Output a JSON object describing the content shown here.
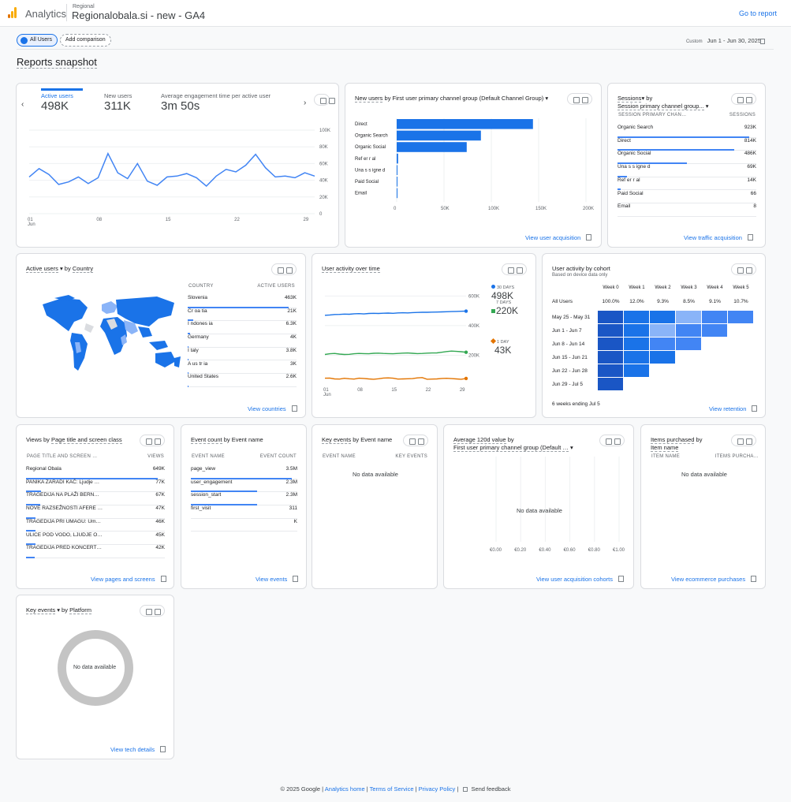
{
  "header": {
    "brand": "Analytics",
    "account": "Regional",
    "property": "Regionalobala.si - new - GA4",
    "go_to_report": "Go to report",
    "logo_colors": [
      "#f9ab00",
      "#e37400"
    ]
  },
  "toolbar": {
    "all_users": "All Users",
    "add_comparison": "Add comparison",
    "date_label": "Custom",
    "date_range": "Jun 1 - Jun 30, 2025"
  },
  "page_title": "Reports snapshot",
  "card_overview": {
    "metrics": [
      {
        "label": "Active users",
        "value": "498K"
      },
      {
        "label": "New users",
        "value": "311K"
      },
      {
        "label": "Average engagement time per active user",
        "value": "3m 50s"
      }
    ],
    "y_ticks": [
      "100K",
      "80K",
      "60K",
      "40K",
      "20K",
      "0"
    ],
    "x_ticks": [
      "01",
      "08",
      "15",
      "22",
      "29"
    ],
    "x_sub": "Jun"
  },
  "chart_data": [
    {
      "type": "line",
      "title": "Active users",
      "x": [
        "Jun 1",
        "Jun 2",
        "Jun 3",
        "Jun 4",
        "Jun 5",
        "Jun 6",
        "Jun 7",
        "Jun 8",
        "Jun 9",
        "Jun 10",
        "Jun 11",
        "Jun 12",
        "Jun 13",
        "Jun 14",
        "Jun 15",
        "Jun 16",
        "Jun 17",
        "Jun 18",
        "Jun 19",
        "Jun 20",
        "Jun 21",
        "Jun 22",
        "Jun 23",
        "Jun 24",
        "Jun 25",
        "Jun 26",
        "Jun 27",
        "Jun 28",
        "Jun 29",
        "Jun 30"
      ],
      "values": [
        44000,
        54000,
        47000,
        35000,
        38000,
        44000,
        36000,
        43000,
        72000,
        49000,
        42000,
        60000,
        39000,
        34000,
        44000,
        45000,
        48000,
        43000,
        33000,
        45000,
        53000,
        50000,
        58000,
        71000,
        55000,
        44000,
        45000,
        43000,
        49000,
        45000
      ],
      "ylim": [
        0,
        100000
      ],
      "x_ticks": [
        "01",
        "08",
        "15",
        "22",
        "29"
      ],
      "y_ticks": [
        "100K",
        "80K",
        "60K",
        "40K",
        "20K",
        "0"
      ]
    },
    {
      "type": "bar",
      "title": "New users by First user primary channel group (Default Channel Group)",
      "categories": [
        "Direct",
        "Organic Search",
        "Organic Social",
        "Ref er r al",
        "Una s s igne d",
        "Paid Social",
        "Email"
      ],
      "values": [
        144000,
        89000,
        74000,
        1500,
        800,
        200,
        50
      ],
      "ylim": [
        0,
        200000
      ],
      "ticks": [
        "0",
        "50K",
        "100K",
        "150K",
        "200K"
      ]
    },
    {
      "type": "line",
      "title": "User activity over time",
      "x_ticks": [
        "01",
        "08",
        "15",
        "22",
        "29"
      ],
      "x_sub": "Jun",
      "y_ticks": [
        "600K",
        "400K",
        "200K"
      ],
      "series": [
        {
          "name": "30 DAYS",
          "value": "498K",
          "color": "#1a73e8",
          "values": [
            470000,
            472000,
            475000,
            476000,
            478000,
            477000,
            480000,
            481000,
            479000,
            482000,
            483000,
            482000,
            484000,
            485000,
            483000,
            486000,
            487000,
            486000,
            488000,
            489000,
            490000,
            490000,
            491000,
            492000,
            493000,
            494000,
            495000,
            496000,
            497000,
            498000
          ]
        },
        {
          "name": "7 DAYS",
          "value": "220K",
          "color": "#34a853",
          "values": [
            205000,
            210000,
            212000,
            208000,
            205000,
            206000,
            210000,
            212000,
            211000,
            210000,
            213000,
            214000,
            212000,
            211000,
            210000,
            212000,
            214000,
            215000,
            213000,
            211000,
            212000,
            214000,
            215000,
            216000,
            220000,
            225000,
            228000,
            226000,
            224000,
            220000
          ]
        },
        {
          "name": "1 DAY",
          "value": "43K",
          "color": "#e37400",
          "values": [
            45000,
            46000,
            40000,
            39000,
            44000,
            41000,
            39000,
            45000,
            43000,
            40000,
            38000,
            41000,
            46000,
            47000,
            45000,
            39000,
            40000,
            41000,
            42000,
            47000,
            49000,
            38000,
            39000,
            40000,
            43000,
            44000,
            42000,
            40000,
            38000,
            43000
          ]
        }
      ],
      "ylim": [
        0,
        650000
      ]
    },
    {
      "type": "line",
      "title": "Average 120d value by First user primary channel group (Default Channel Group)",
      "x_ticks": [
        "€0.00",
        "€0.20",
        "€0.40",
        "€0.60",
        "€0.80",
        "€1.00"
      ],
      "values": []
    }
  ],
  "card_acq": {
    "title_a": "New users",
    "title_b": "by First user primary channel group (Default Channel Group)",
    "link": "View user acquisition"
  },
  "card_traffic": {
    "title_a": "Sessions",
    "title_b": "by",
    "title_c": "Session primary channel group...",
    "col1": "SESSION PRIMARY CHAN…",
    "col2": "SESSIONS",
    "rows": [
      {
        "k": "Organic Search",
        "v": "923K",
        "f": 0.95
      },
      {
        "k": "Direct",
        "v": "814K",
        "f": 0.84
      },
      {
        "k": "Organic Social",
        "v": "486K",
        "f": 0.5
      },
      {
        "k": "Una s s igne d",
        "v": "69K",
        "f": 0.07
      },
      {
        "k": "Ref er r al",
        "v": "14K",
        "f": 0.02
      },
      {
        "k": "Paid Social",
        "v": "66",
        "f": 0
      },
      {
        "k": "Email",
        "v": "8",
        "f": 0
      }
    ],
    "link": "View traffic acquisition"
  },
  "card_country": {
    "title_a": "Active users",
    "title_b": "by",
    "title_c": "Country",
    "col1": "COUNTRY",
    "col2": "ACTIVE USERS",
    "rows": [
      {
        "k": "Slovenia",
        "v": "463K",
        "f": 0.93
      },
      {
        "k": "Cr oa tia",
        "v": "21K",
        "f": 0.05
      },
      {
        "k": "I ndones ia",
        "v": "6.3K",
        "f": 0.02
      },
      {
        "k": "Germany",
        "v": "4K",
        "f": 0.01
      },
      {
        "k": "I taly",
        "v": "3.8K",
        "f": 0.01
      },
      {
        "k": "A us tr ia",
        "v": "3K",
        "f": 0.01
      },
      {
        "k": "United States",
        "v": "2.6K",
        "f": 0.01
      }
    ],
    "link": "View countries"
  },
  "card_activity": {
    "title": "User activity over time",
    "labels": [
      {
        "name": "30 DAYS",
        "value": "498K"
      },
      {
        "name": "7 DAYS",
        "value": "220K"
      },
      {
        "name": "1 DAY",
        "value": "43K"
      }
    ]
  },
  "card_cohort": {
    "title": "User activity by cohort",
    "subtitle": "Based on device data only",
    "weeks": [
      "Week 0",
      "Week 1",
      "Week 2",
      "Week 3",
      "Week 4",
      "Week 5"
    ],
    "all_users": "All Users",
    "all_values": [
      "100.0%",
      "12.0%",
      "9.3%",
      "8.5%",
      "9.1%",
      "10.7%"
    ],
    "rows": [
      "May 25 - May 31",
      "Jun 1 - Jun 7",
      "Jun 8 - Jun 14",
      "Jun 15 - Jun 21",
      "Jun 22 - Jun 28",
      "Jun 29 - Jul 5"
    ],
    "footnote": "6 weeks ending Jul 5",
    "link": "View retention"
  },
  "card_pages": {
    "title_a": "Views by",
    "title_b": "Page title and screen class",
    "col1": "PAGE TITLE AND SCREEN …",
    "col2": "VIEWS",
    "rows": [
      {
        "k": "Regional Obala",
        "v": "649K",
        "f": 0.95
      },
      {
        "k": "PANIKA ZARADI KAČ: Ljudje …",
        "v": "77K",
        "f": 0.11
      },
      {
        "k": "TRAGEDIJA NA PLAŽI BERN…",
        "v": "67K",
        "f": 0.1
      },
      {
        "k": "NOVE RAZSEŽNOSTI AFERE …",
        "v": "47K",
        "f": 0.07
      },
      {
        "k": "TRAGEDIJA PRI UMAGU: Um…",
        "v": "46K",
        "f": 0.07
      },
      {
        "k": "ULICE POD VODO, LJUDJE O…",
        "v": "45K",
        "f": 0.07
      },
      {
        "k": "TRAGEDIJA PRED KONCERT…",
        "v": "42K",
        "f": 0.06
      }
    ],
    "link": "View pages and screens"
  },
  "card_events": {
    "title_a": "Event count",
    "title_b": "by Event name",
    "col1": "EVENT NAME",
    "col2": "EVENT COUNT",
    "rows": [
      {
        "k": "page_view",
        "v": "3.5M",
        "f": 0.95
      },
      {
        "k": "user_engagement",
        "v": "2.3M",
        "f": 0.62
      },
      {
        "k": "session_start",
        "v": "2.3M",
        "f": 0.62
      },
      {
        "k": "first_visit",
        "v": "311",
        "f": 0
      },
      {
        "k": "",
        "v": "K",
        "f": 0
      }
    ],
    "link": "View events"
  },
  "card_keyevents": {
    "title_a": "Key events",
    "title_b": "by Event name",
    "col1": "EVENT NAME",
    "col2": "KEY EVENTS",
    "nodata": "No data available"
  },
  "card_value": {
    "title_a": "Average 120d value",
    "title_b": "by",
    "title_c": "First user primary channel group (Default …",
    "nodata": "No data available",
    "link": "View user acquisition cohorts"
  },
  "card_items": {
    "title_a": "Items purchased",
    "title_b": "by",
    "title_c": "Item name",
    "col1": "ITEM NAME",
    "col2": "ITEMS PURCHA…",
    "nodata": "No data available",
    "link": "View ecommerce purchases"
  },
  "card_platform": {
    "title_a": "Key events",
    "title_b": "by",
    "title_c": "Platform",
    "nodata": "No data available",
    "link": "View tech details"
  },
  "footer": {
    "copyright": "© 2025 Google",
    "links": [
      "Analytics home",
      "Terms of Service",
      "Privacy Policy"
    ],
    "feedback": "Send feedback"
  }
}
